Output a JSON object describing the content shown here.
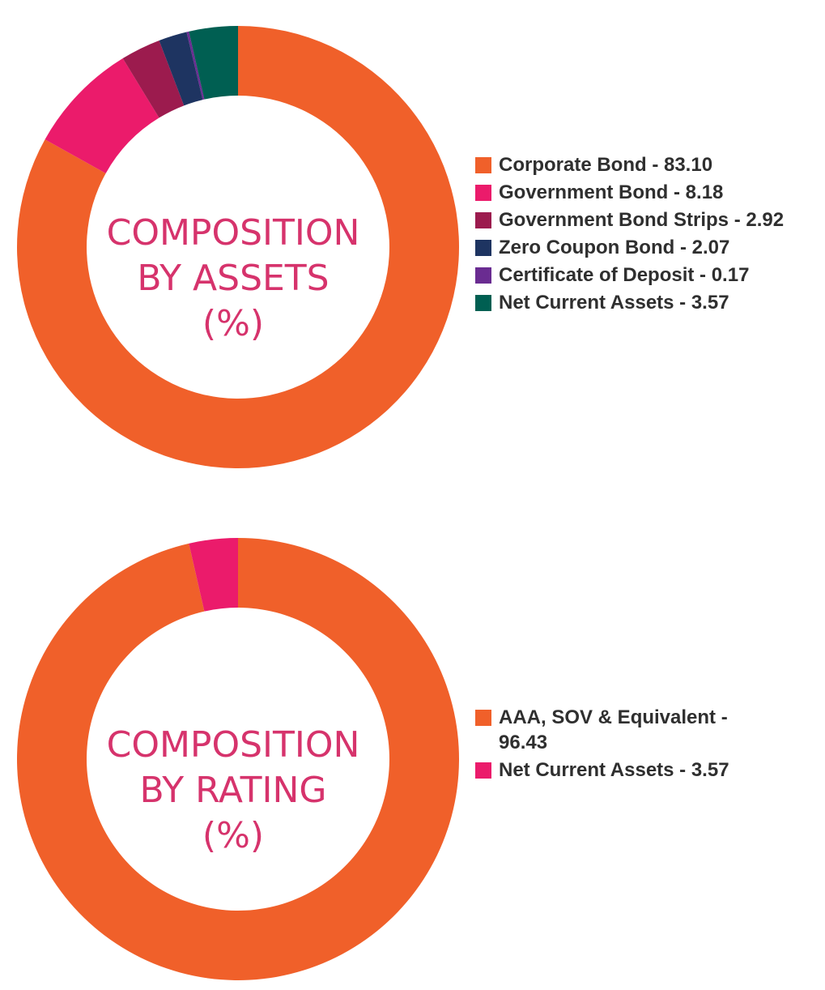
{
  "chart_data": [
    {
      "type": "pie",
      "donut": true,
      "title": [
        "COMPOSITION",
        "BY ASSETS",
        "(%)"
      ],
      "title_color": "#d6336c",
      "legend_position": "right",
      "slices": [
        {
          "label": "Corporate Bond",
          "value": 83.1,
          "legend": "Corporate Bond - 83.10",
          "color": "#f0602a"
        },
        {
          "label": "Government Bond",
          "value": 8.18,
          "legend": "Government Bond - 8.18",
          "color": "#eb1b6b"
        },
        {
          "label": "Government Bond Strips",
          "value": 2.92,
          "legend": "Government Bond Strips - 2.92",
          "color": "#9c1b4e"
        },
        {
          "label": "Zero Coupon Bond",
          "value": 2.07,
          "legend": "Zero Coupon Bond - 2.07",
          "color": "#1e3461"
        },
        {
          "label": "Certificate of Deposit",
          "value": 0.17,
          "legend": "Certificate of Deposit - 0.17",
          "color": "#6a2c91"
        },
        {
          "label": "Net Current Assets",
          "value": 3.57,
          "legend": "Net Current Assets - 3.57",
          "color": "#005f52"
        }
      ]
    },
    {
      "type": "pie",
      "donut": true,
      "title": [
        "COMPOSITION",
        "BY RATING",
        "(%)"
      ],
      "title_color": "#d6336c",
      "legend_position": "right",
      "slices": [
        {
          "label": "AAA, SOV & Equivalent",
          "value": 96.43,
          "legend": "AAA, SOV & Equivalent - 96.43",
          "color": "#f0602a"
        },
        {
          "label": "Net Current Assets",
          "value": 3.57,
          "legend": "Net Current Assets - 3.57",
          "color": "#eb1b6b"
        }
      ]
    }
  ]
}
